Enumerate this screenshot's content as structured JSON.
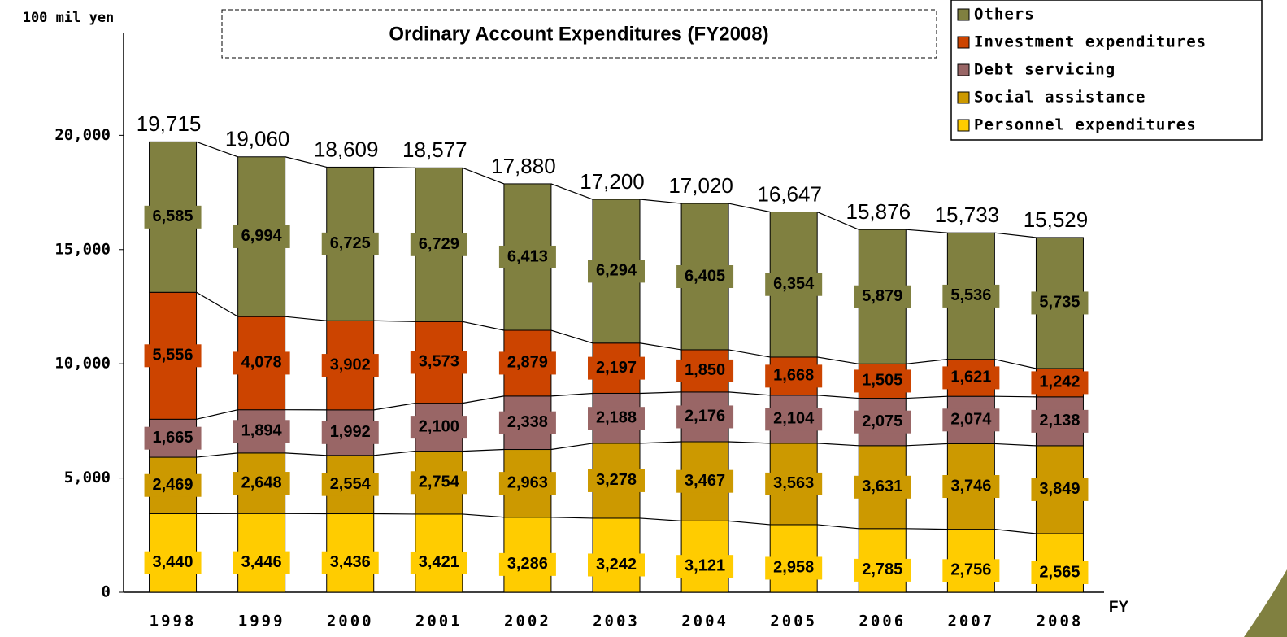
{
  "chart_data": {
    "type": "stacked_bar",
    "title": "Ordinary Account Expenditures (FY2008)",
    "y_axis_label": "100 mil yen",
    "x_axis_label": "FY",
    "categories": [
      "1998",
      "1999",
      "2000",
      "2001",
      "2002",
      "2003",
      "2004",
      "2005",
      "2006",
      "2007",
      "2008"
    ],
    "series": [
      {
        "name": "Personnel expenditures",
        "color": "#ffcc00",
        "values": [
          3440,
          3446,
          3436,
          3421,
          3286,
          3242,
          3121,
          2958,
          2785,
          2756,
          2565
        ],
        "value_labels": [
          "3,440",
          "3,446",
          "3,436",
          "3,421",
          "3,286",
          "3,242",
          "3,121",
          "2,958",
          "2,785",
          "2,756",
          "2,565"
        ]
      },
      {
        "name": "Social assistance",
        "color": "#cc9900",
        "values": [
          2469,
          2648,
          2554,
          2754,
          2963,
          3278,
          3467,
          3563,
          3631,
          3746,
          3849
        ],
        "value_labels": [
          "2,469",
          "2,648",
          "2,554",
          "2,754",
          "2,963",
          "3,278",
          "3,467",
          "3,563",
          "3,631",
          "3,746",
          "3,849"
        ]
      },
      {
        "name": "Debt servicing",
        "color": "#996666",
        "values": [
          1665,
          1894,
          1992,
          2100,
          2338,
          2188,
          2176,
          2104,
          2075,
          2074,
          2138
        ],
        "value_labels": [
          "1,665",
          "1,894",
          "1,992",
          "2,100",
          "2,338",
          "2,188",
          "2,176",
          "2,104",
          "2,075",
          "2,074",
          "2,138"
        ]
      },
      {
        "name": "Investment expenditures",
        "color": "#cc4400",
        "values": [
          5556,
          4078,
          3902,
          3573,
          2879,
          2197,
          1850,
          1668,
          1505,
          1621,
          1242
        ],
        "value_labels": [
          "5,556",
          "4,078",
          "3,902",
          "3,573",
          "2,879",
          "2,197",
          "1,850",
          "1,668",
          "1,505",
          "1,621",
          "1,242"
        ]
      },
      {
        "name": "Others",
        "color": "#808040",
        "values": [
          6585,
          6994,
          6725,
          6729,
          6413,
          6294,
          6405,
          6354,
          5879,
          5536,
          5735
        ],
        "value_labels": [
          "6,585",
          "6,994",
          "6,725",
          "6,729",
          "6,413",
          "6,294",
          "6,405",
          "6,354",
          "5,879",
          "5,536",
          "5,735"
        ]
      }
    ],
    "totals": {
      "values": [
        19715,
        19060,
        18609,
        18577,
        17880,
        17200,
        17020,
        16647,
        15876,
        15733,
        15529
      ],
      "value_labels": [
        "19,715",
        "19,060",
        "18,609",
        "18,577",
        "17,880",
        "17,200",
        "17,020",
        "16,647",
        "15,876",
        "15,733",
        "15,529"
      ]
    },
    "ylim": [
      0,
      24500
    ],
    "yticks": [
      0,
      {
        "value": 5000,
        "label": "5,000"
      },
      {
        "value": 10000,
        "label": "10,000"
      },
      {
        "value": 15000,
        "label": "15,000"
      },
      {
        "value": 20000,
        "label": "20,000"
      }
    ],
    "legend": "top-right",
    "grid": false
  }
}
